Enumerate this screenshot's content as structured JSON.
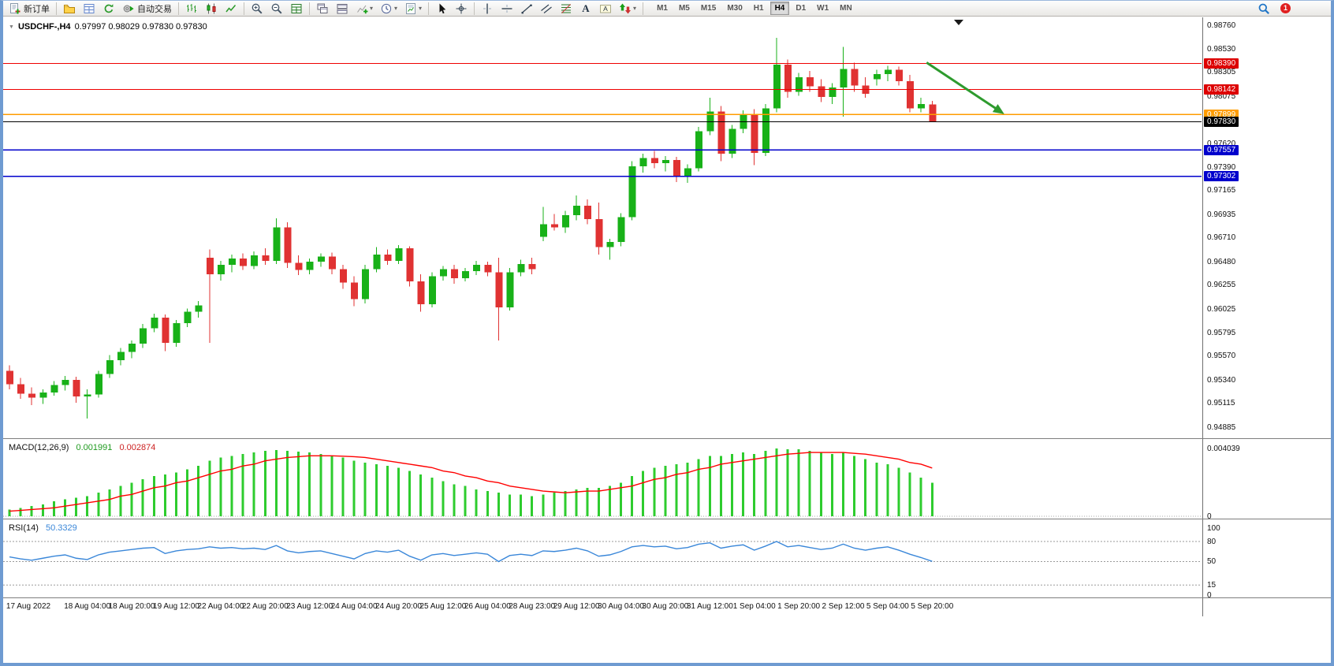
{
  "toolbar": {
    "buttons": [
      {
        "name": "new-order",
        "icon": "new-order-icon",
        "label": "新订单"
      },
      {
        "type": "sep"
      },
      {
        "name": "profiles",
        "icon": "profiles-icon"
      },
      {
        "name": "market-watch",
        "icon": "market-watch-icon"
      },
      {
        "name": "refresh",
        "icon": "refresh-icon"
      },
      {
        "name": "auto-trading",
        "icon": "auto-trading-icon",
        "label": "自动交易"
      },
      {
        "type": "sep"
      },
      {
        "name": "ohlc-bars-mode",
        "icon": "ohlc-bars-icon"
      },
      {
        "name": "candlestick-mode",
        "icon": "candlestick-icon"
      },
      {
        "name": "line-chart-mode",
        "icon": "line-chart-icon"
      },
      {
        "type": "sep"
      },
      {
        "name": "zoom-in",
        "icon": "zoom-in-icon"
      },
      {
        "name": "zoom-out",
        "icon": "zoom-out-icon"
      },
      {
        "name": "tile-windows",
        "icon": "tile-windows-icon"
      },
      {
        "type": "sep"
      },
      {
        "name": "cascade-windows",
        "icon": "cascade-icon"
      },
      {
        "name": "arrange-windows",
        "icon": "arrange-icon"
      },
      {
        "name": "add-indicator",
        "icon": "add-indicator-icon",
        "dropdown": true
      },
      {
        "name": "periods",
        "icon": "clock-icon",
        "dropdown": true
      },
      {
        "name": "templates",
        "icon": "template-icon",
        "dropdown": true
      },
      {
        "type": "sep"
      },
      {
        "name": "cursor-tool",
        "icon": "cursor-icon"
      },
      {
        "name": "crosshair-tool",
        "icon": "crosshair-icon"
      },
      {
        "type": "sep"
      },
      {
        "name": "vertical-line-tool",
        "icon": "vertical-line-icon"
      },
      {
        "name": "horizontal-line-tool",
        "icon": "horizontal-line-icon"
      },
      {
        "name": "trendline-tool",
        "icon": "trendline-icon"
      },
      {
        "name": "channel-tool",
        "icon": "channel-icon"
      },
      {
        "name": "fibonacci-tool",
        "icon": "fibonacci-icon"
      },
      {
        "name": "text-tool",
        "icon": "text-icon"
      },
      {
        "name": "text-label-tool",
        "icon": "text-label-icon"
      },
      {
        "name": "arrows-tool",
        "icon": "shapes-icon",
        "dropdown": true
      },
      {
        "type": "sep"
      }
    ],
    "timeframes": [
      {
        "label": "M1"
      },
      {
        "label": "M5"
      },
      {
        "label": "M15"
      },
      {
        "label": "M30"
      },
      {
        "label": "H1"
      },
      {
        "label": "H4",
        "active": true
      },
      {
        "label": "D1"
      },
      {
        "label": "W1"
      },
      {
        "label": "MN"
      }
    ],
    "right_buttons": [
      {
        "name": "search",
        "icon": "search-icon"
      },
      {
        "name": "notifications",
        "badge": "1"
      }
    ]
  },
  "chart": {
    "symbol_title": "USDCHF-,H4",
    "ohlc": "0.97997 0.98029 0.97830 0.97830"
  },
  "chart_data": {
    "main": {
      "type": "candlestick",
      "symbol": "USDCHF-",
      "timeframe": "H4",
      "price_top": 0.98821,
      "price_bottom": 0.94779,
      "up_color": "#18b118",
      "down_color": "#e03232",
      "axis_ticks": [
        "0.98760",
        "0.98530",
        "0.98305",
        "0.98075",
        "0.97620",
        "0.97390",
        "0.97165",
        "0.96935",
        "0.96710",
        "0.96480",
        "0.96255",
        "0.96025",
        "0.95795",
        "0.95570",
        "0.95340",
        "0.95115",
        "0.94885"
      ],
      "axis_badges": [
        {
          "value": "0.98390",
          "bg": "#dd0000"
        },
        {
          "value": "0.98142",
          "bg": "#dd0000"
        },
        {
          "value": "0.97899",
          "bg": "#ff9c00"
        },
        {
          "value": "0.97830",
          "bg": "#000000"
        },
        {
          "value": "0.97557",
          "bg": "#0000cc"
        },
        {
          "value": "0.97302",
          "bg": "#0000cc"
        }
      ],
      "hlines": [
        {
          "price": 0.9839,
          "color": "#ee0000",
          "width": 1
        },
        {
          "price": 0.98142,
          "color": "#ee0000",
          "width": 1
        },
        {
          "price": 0.97899,
          "color": "#ff9c00",
          "width": 1.4
        },
        {
          "price": 0.9783,
          "color": "#000000",
          "width": 1
        },
        {
          "price": 0.97557,
          "color": "#0000cc",
          "width": 1.6
        },
        {
          "price": 0.97302,
          "color": "#0000cc",
          "width": 1.6
        }
      ],
      "annotation_arrow": {
        "from_i": 82.5,
        "from_price": 0.984,
        "to_i": 89.2,
        "to_price": 0.97924,
        "color": "#2e9b2e"
      },
      "candles": [
        [
          0.9543,
          0.9548,
          0.9525,
          0.953
        ],
        [
          0.953,
          0.9536,
          0.9516,
          0.9521
        ],
        [
          0.9521,
          0.9527,
          0.951,
          0.9517
        ],
        [
          0.9517,
          0.9525,
          0.9511,
          0.9522
        ],
        [
          0.9522,
          0.9533,
          0.9519,
          0.9529
        ],
        [
          0.9529,
          0.9538,
          0.9524,
          0.9534
        ],
        [
          0.9534,
          0.9537,
          0.9512,
          0.9518
        ],
        [
          0.9518,
          0.9525,
          0.9497,
          0.952
        ],
        [
          0.952,
          0.9543,
          0.9517,
          0.954
        ],
        [
          0.954,
          0.9558,
          0.9536,
          0.9553
        ],
        [
          0.9553,
          0.9565,
          0.9548,
          0.9561
        ],
        [
          0.9561,
          0.9572,
          0.9555,
          0.9569
        ],
        [
          0.9569,
          0.9588,
          0.9565,
          0.9584
        ],
        [
          0.9584,
          0.9598,
          0.958,
          0.9594
        ],
        [
          0.9594,
          0.9597,
          0.9562,
          0.957
        ],
        [
          0.957,
          0.9592,
          0.9566,
          0.9589
        ],
        [
          0.9589,
          0.9603,
          0.9585,
          0.96
        ],
        [
          0.96,
          0.961,
          0.9594,
          0.9606
        ],
        [
          0.9652,
          0.966,
          0.957,
          0.9636
        ],
        [
          0.9636,
          0.9649,
          0.963,
          0.9645
        ],
        [
          0.9645,
          0.9655,
          0.9638,
          0.9651
        ],
        [
          0.9651,
          0.9656,
          0.964,
          0.9644
        ],
        [
          0.9644,
          0.9658,
          0.9641,
          0.9654
        ],
        [
          0.9654,
          0.9661,
          0.9645,
          0.9649
        ],
        [
          0.9649,
          0.969,
          0.9646,
          0.9681
        ],
        [
          0.9681,
          0.9686,
          0.9642,
          0.9647
        ],
        [
          0.9647,
          0.9654,
          0.9635,
          0.964
        ],
        [
          0.964,
          0.9651,
          0.9636,
          0.9648
        ],
        [
          0.9648,
          0.9656,
          0.9643,
          0.9653
        ],
        [
          0.9653,
          0.9657,
          0.9636,
          0.9641
        ],
        [
          0.9641,
          0.9645,
          0.9622,
          0.9628
        ],
        [
          0.9628,
          0.9634,
          0.9605,
          0.9612
        ],
        [
          0.9612,
          0.9645,
          0.9608,
          0.9641
        ],
        [
          0.9641,
          0.9662,
          0.9638,
          0.9655
        ],
        [
          0.9655,
          0.966,
          0.9645,
          0.9649
        ],
        [
          0.9649,
          0.9664,
          0.9646,
          0.9661
        ],
        [
          0.9661,
          0.9663,
          0.9624,
          0.9629
        ],
        [
          0.9629,
          0.9636,
          0.96,
          0.9607
        ],
        [
          0.9607,
          0.9638,
          0.9604,
          0.9634
        ],
        [
          0.9634,
          0.9644,
          0.963,
          0.9641
        ],
        [
          0.9641,
          0.9645,
          0.9627,
          0.9632
        ],
        [
          0.9632,
          0.9642,
          0.9629,
          0.9639
        ],
        [
          0.9639,
          0.9649,
          0.9635,
          0.9645
        ],
        [
          0.9645,
          0.9648,
          0.9634,
          0.9638
        ],
        [
          0.9638,
          0.9652,
          0.9572,
          0.9604
        ],
        [
          0.9604,
          0.9642,
          0.9601,
          0.9638
        ],
        [
          0.9638,
          0.965,
          0.9634,
          0.9646
        ],
        [
          0.9646,
          0.9652,
          0.9636,
          0.9641
        ],
        [
          0.9672,
          0.9701,
          0.9668,
          0.9684
        ],
        [
          0.9684,
          0.9694,
          0.9678,
          0.9681
        ],
        [
          0.9681,
          0.9697,
          0.9676,
          0.9693
        ],
        [
          0.9693,
          0.9712,
          0.9688,
          0.9702
        ],
        [
          0.9702,
          0.9708,
          0.9684,
          0.9689
        ],
        [
          0.9689,
          0.9705,
          0.9655,
          0.9662
        ],
        [
          0.9662,
          0.967,
          0.965,
          0.9667
        ],
        [
          0.9667,
          0.9695,
          0.9663,
          0.9691
        ],
        [
          0.9691,
          0.9745,
          0.9688,
          0.974
        ],
        [
          0.974,
          0.9752,
          0.9734,
          0.9748
        ],
        [
          0.9748,
          0.9755,
          0.9738,
          0.9743
        ],
        [
          0.9743,
          0.975,
          0.9735,
          0.9746
        ],
        [
          0.9746,
          0.9749,
          0.9725,
          0.973
        ],
        [
          0.973,
          0.9742,
          0.9724,
          0.9738
        ],
        [
          0.9738,
          0.9778,
          0.9735,
          0.9774
        ],
        [
          0.9774,
          0.9806,
          0.977,
          0.9793
        ],
        [
          0.9793,
          0.9798,
          0.9745,
          0.9752
        ],
        [
          0.9752,
          0.978,
          0.9748,
          0.9776
        ],
        [
          0.9776,
          0.9794,
          0.9772,
          0.979
        ],
        [
          0.979,
          0.9795,
          0.9741,
          0.9753
        ],
        [
          0.9753,
          0.98,
          0.975,
          0.9796
        ],
        [
          0.9796,
          0.9864,
          0.9792,
          0.9838
        ],
        [
          0.9838,
          0.9843,
          0.9806,
          0.9812
        ],
        [
          0.9812,
          0.983,
          0.9808,
          0.9826
        ],
        [
          0.9826,
          0.9832,
          0.9812,
          0.9817
        ],
        [
          0.9817,
          0.9824,
          0.9802,
          0.9807
        ],
        [
          0.9807,
          0.982,
          0.98,
          0.9816
        ],
        [
          0.9816,
          0.9855,
          0.9788,
          0.9834
        ],
        [
          0.9834,
          0.984,
          0.9812,
          0.9818
        ],
        [
          0.9818,
          0.9826,
          0.9806,
          0.981
        ],
        [
          0.9824,
          0.9833,
          0.9818,
          0.9829
        ],
        [
          0.9829,
          0.9837,
          0.9822,
          0.9833
        ],
        [
          0.9833,
          0.9836,
          0.9818,
          0.9822
        ],
        [
          0.9822,
          0.9828,
          0.9792,
          0.9796
        ],
        [
          0.9796,
          0.9806,
          0.9792,
          0.98
        ],
        [
          0.97997,
          0.98029,
          0.9783,
          0.9783
        ]
      ]
    },
    "macd": {
      "label": "MACD(12,26,9)",
      "value": "0.001991",
      "signal_value": "0.002874",
      "scale_max": 0.004039,
      "hist_color": "#2ecc2e",
      "signal_color": "#ff0000",
      "axis_labels": [
        {
          "text": "0.004039",
          "v": 0.004039
        },
        {
          "text": "0",
          "v": 0
        }
      ],
      "histogram": [
        0.0004,
        0.0005,
        0.0006,
        0.0007,
        0.0009,
        0.001,
        0.0011,
        0.0012,
        0.0014,
        0.0016,
        0.0018,
        0.002,
        0.0022,
        0.0024,
        0.0025,
        0.0026,
        0.0028,
        0.003,
        0.0033,
        0.0035,
        0.0036,
        0.0037,
        0.0038,
        0.0039,
        0.00395,
        0.0039,
        0.00385,
        0.0038,
        0.0037,
        0.0036,
        0.0035,
        0.0033,
        0.0032,
        0.0031,
        0.003,
        0.0029,
        0.0027,
        0.0025,
        0.0023,
        0.0021,
        0.0019,
        0.0018,
        0.0016,
        0.0015,
        0.0014,
        0.0013,
        0.0013,
        0.0012,
        0.0013,
        0.0014,
        0.0015,
        0.0016,
        0.0017,
        0.0017,
        0.0018,
        0.002,
        0.0024,
        0.0027,
        0.0029,
        0.003,
        0.0031,
        0.0032,
        0.0034,
        0.0036,
        0.0036,
        0.0037,
        0.0038,
        0.0037,
        0.0039,
        0.004039,
        0.004,
        0.004,
        0.0039,
        0.0038,
        0.0037,
        0.0038,
        0.0036,
        0.0034,
        0.0032,
        0.0031,
        0.0029,
        0.0026,
        0.0023,
        0.001991
      ],
      "signal": [
        0.0003,
        0.00035,
        0.0004,
        0.00045,
        0.0005,
        0.0006,
        0.0007,
        0.0008,
        0.0009,
        0.001,
        0.0012,
        0.0013,
        0.0015,
        0.0017,
        0.0018,
        0.002,
        0.0021,
        0.0023,
        0.0025,
        0.0027,
        0.0028,
        0.003,
        0.0031,
        0.0033,
        0.0034,
        0.0035,
        0.00355,
        0.0036,
        0.0036,
        0.0036,
        0.00358,
        0.00355,
        0.0035,
        0.0034,
        0.0033,
        0.0032,
        0.0031,
        0.003,
        0.0029,
        0.0027,
        0.0026,
        0.0024,
        0.0023,
        0.0021,
        0.002,
        0.0018,
        0.0017,
        0.0016,
        0.0015,
        0.00145,
        0.0014,
        0.00145,
        0.0015,
        0.0015,
        0.0016,
        0.0017,
        0.0018,
        0.002,
        0.0022,
        0.0023,
        0.0025,
        0.0026,
        0.0028,
        0.0029,
        0.0031,
        0.0032,
        0.0033,
        0.0034,
        0.0035,
        0.0036,
        0.0037,
        0.00375,
        0.0038,
        0.0038,
        0.0038,
        0.0038,
        0.00375,
        0.0037,
        0.0036,
        0.0035,
        0.0034,
        0.0032,
        0.0031,
        0.002874
      ]
    },
    "rsi": {
      "label": "RSI(14)",
      "value": "50.3329",
      "color": "#3a87d9",
      "levels": [
        80,
        50,
        15
      ],
      "axis_labels": [
        {
          "text": "100",
          "v": 100
        },
        {
          "text": "80",
          "v": 80
        },
        {
          "text": "50",
          "v": 50
        },
        {
          "text": "15",
          "v": 15
        },
        {
          "text": "0",
          "v": 0
        }
      ],
      "values": [
        57,
        54,
        52,
        55,
        58,
        60,
        55,
        53,
        60,
        64,
        66,
        68,
        70,
        71,
        62,
        66,
        68,
        69,
        72,
        70,
        71,
        69,
        70,
        68,
        74,
        66,
        63,
        65,
        66,
        62,
        58,
        54,
        62,
        66,
        64,
        67,
        58,
        52,
        60,
        62,
        59,
        61,
        63,
        61,
        50,
        59,
        61,
        59,
        66,
        65,
        67,
        70,
        66,
        58,
        60,
        65,
        72,
        74,
        72,
        73,
        69,
        71,
        76,
        78,
        70,
        73,
        75,
        67,
        73,
        80,
        72,
        74,
        71,
        68,
        70,
        76,
        70,
        67,
        70,
        72,
        67,
        61,
        56,
        50.33
      ]
    },
    "time_axis": [
      {
        "label": "17 Aug 2022",
        "i": 0
      },
      {
        "label": "18 Aug 04:00",
        "i": 7
      },
      {
        "label": "18 Aug 20:00",
        "i": 11
      },
      {
        "label": "19 Aug 12:00",
        "i": 15
      },
      {
        "label": "22 Aug 04:00",
        "i": 19
      },
      {
        "label": "22 Aug 20:00",
        "i": 23
      },
      {
        "label": "23 Aug 12:00",
        "i": 27
      },
      {
        "label": "24 Aug 04:00",
        "i": 31
      },
      {
        "label": "24 Aug 20:00",
        "i": 35
      },
      {
        "label": "25 Aug 12:00",
        "i": 39
      },
      {
        "label": "26 Aug 04:00",
        "i": 43
      },
      {
        "label": "28 Aug 23:00",
        "i": 47
      },
      {
        "label": "29 Aug 12:00",
        "i": 51
      },
      {
        "label": "30 Aug 04:00",
        "i": 55
      },
      {
        "label": "30 Aug 20:00",
        "i": 59
      },
      {
        "label": "31 Aug 12:00",
        "i": 63
      },
      {
        "label": "1 Sep 04:00",
        "i": 67
      },
      {
        "label": "1 Sep 20:00",
        "i": 71
      },
      {
        "label": "2 Sep 12:00",
        "i": 75
      },
      {
        "label": "5 Sep 04:00",
        "i": 79
      },
      {
        "label": "5 Sep 20:00",
        "i": 83
      }
    ]
  }
}
